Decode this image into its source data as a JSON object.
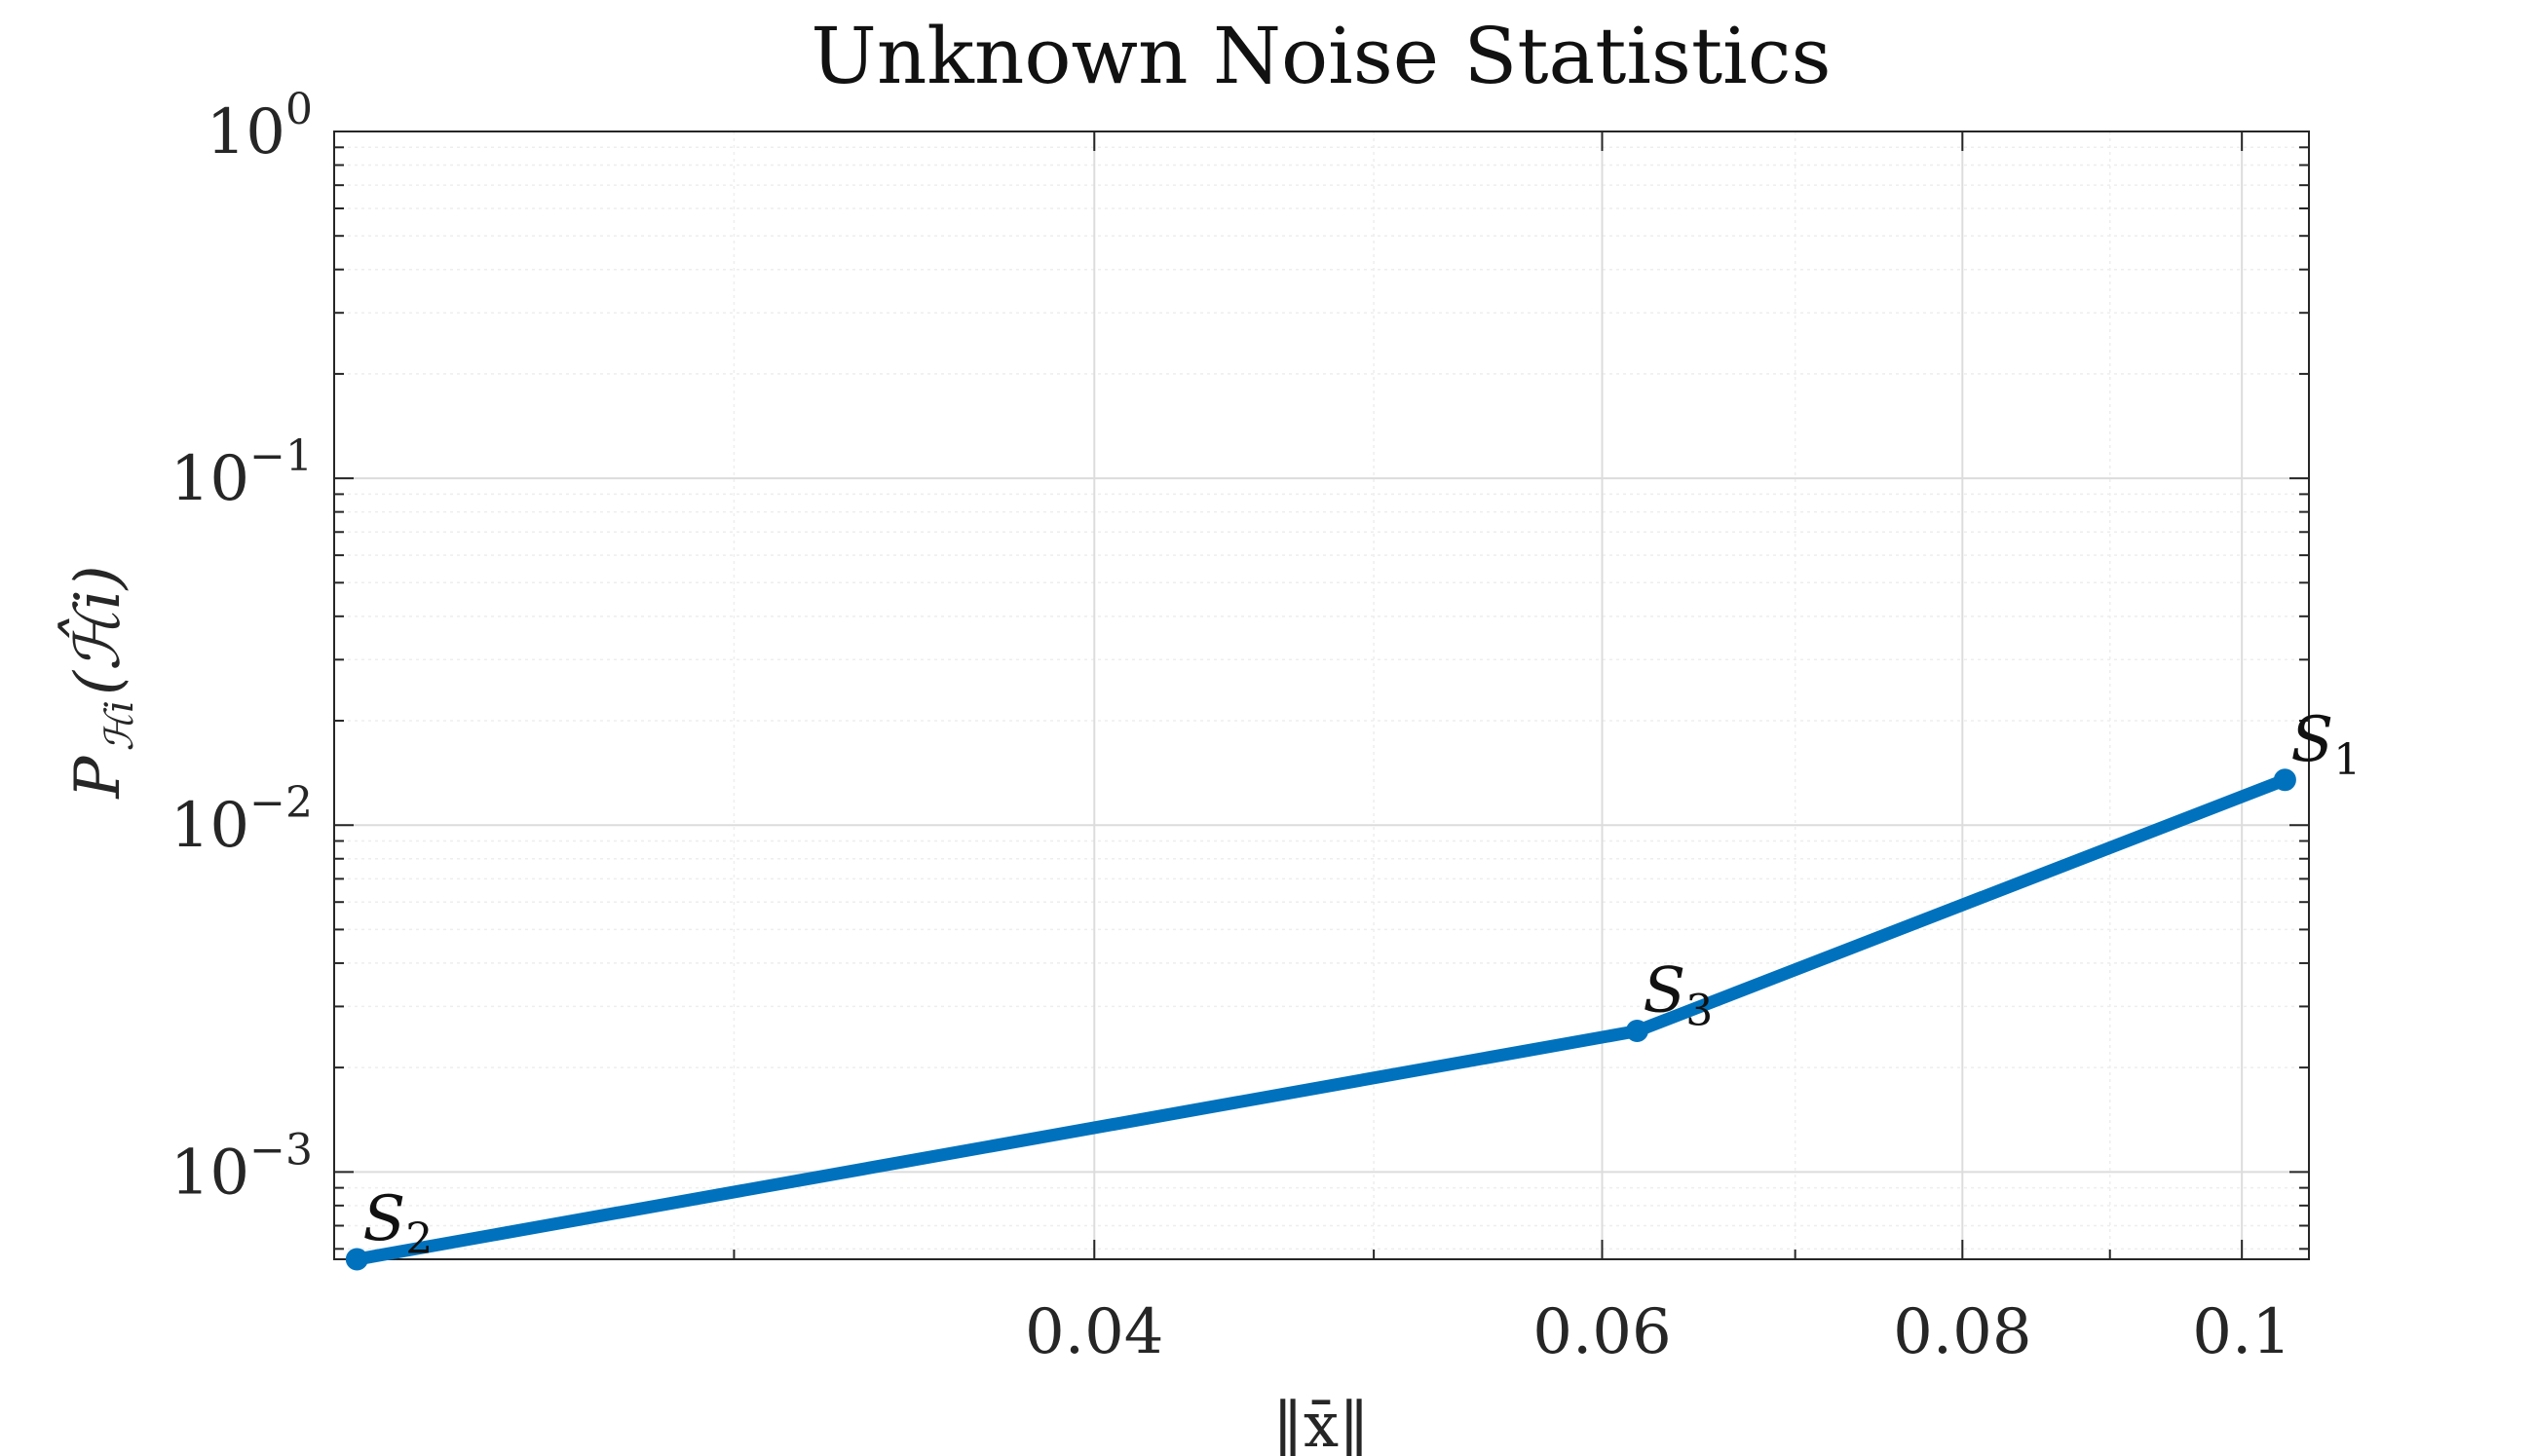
{
  "chart_data": {
    "type": "line",
    "title": "Unknown Noise Statistics",
    "xlabel": "‖x̄‖",
    "ylabel": {
      "base": "P",
      "subscript": "ℋi",
      "argument": "(ℋ̂i)"
    },
    "x_scale": "log",
    "y_scale": "log",
    "xlim": [
      0.0218,
      0.1055
    ],
    "ylim": [
      0.00056,
      1
    ],
    "grid": true,
    "x_ticks": [
      0.04,
      0.06,
      0.08,
      0.1
    ],
    "x_tick_labels": [
      "0.04",
      "0.06",
      "0.08",
      "0.1"
    ],
    "y_ticks": [
      {
        "value": 0.001,
        "base": "10",
        "exp": "−3"
      },
      {
        "value": 0.01,
        "base": "10",
        "exp": "−2"
      },
      {
        "value": 0.1,
        "base": "10",
        "exp": "−1"
      },
      {
        "value": 1,
        "base": "10",
        "exp": "0"
      }
    ],
    "series": [
      {
        "color": "#0072BD",
        "points": [
          {
            "x": 0.0222,
            "y": 0.00056,
            "label": "S",
            "label_sub": "2"
          },
          {
            "x": 0.0617,
            "y": 0.00255,
            "label": "S",
            "label_sub": "3"
          },
          {
            "x": 0.1035,
            "y": 0.0135,
            "label": "S",
            "label_sub": "1"
          }
        ]
      }
    ],
    "colors": {
      "line": "#0072BD",
      "axes": "#262626",
      "grid_major": "#dcdcdc",
      "grid_minor": "#eeeeee"
    }
  }
}
